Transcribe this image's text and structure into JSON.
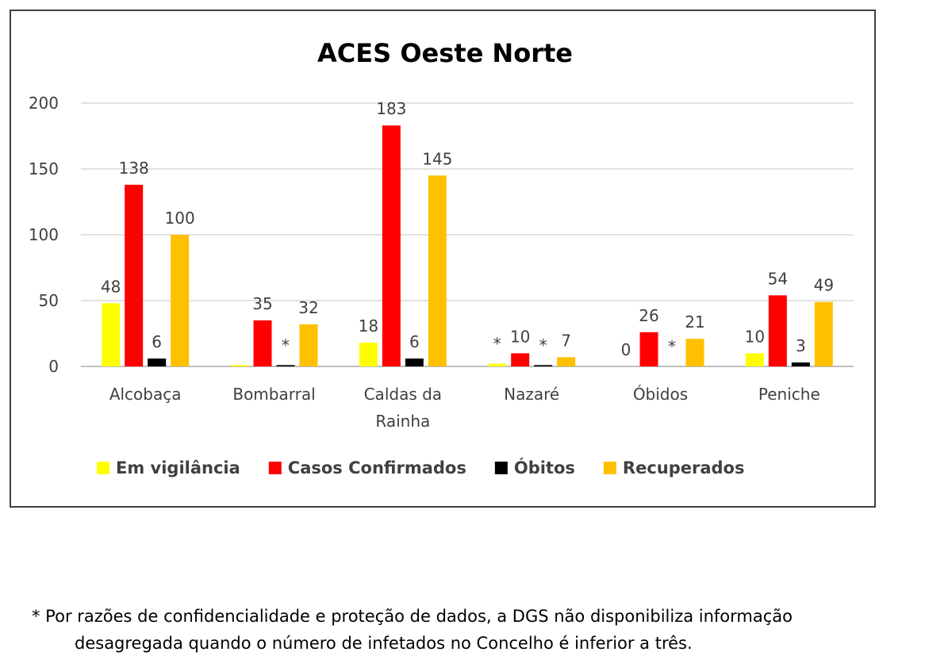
{
  "chart_data": {
    "type": "bar",
    "title": "ACES Oeste Norte",
    "xlabel": "",
    "ylabel": "",
    "ylim": [
      0,
      200
    ],
    "yticks": [
      0,
      50,
      100,
      150,
      200
    ],
    "grid": true,
    "legend_position": "bottom",
    "categories": [
      [
        "Alcobaça"
      ],
      [
        "Bombarral"
      ],
      [
        "Caldas da",
        "Rainha"
      ],
      [
        "Nazaré"
      ],
      [
        "Óbidos"
      ],
      [
        "Peniche"
      ]
    ],
    "series": [
      {
        "name": "Em vigilância",
        "color": "#FFFF00",
        "values": [
          48,
          1,
          18,
          2,
          0,
          10
        ],
        "labels": [
          "48",
          "",
          "18",
          "*",
          "0",
          "10"
        ]
      },
      {
        "name": "Casos Confirmados",
        "color": "#FF0000",
        "values": [
          138,
          35,
          183,
          10,
          26,
          54
        ],
        "labels": [
          "138",
          "35",
          "183",
          "10",
          "26",
          "54"
        ]
      },
      {
        "name": "Óbitos",
        "color": "#000000",
        "values": [
          6,
          1,
          6,
          1,
          0,
          3
        ],
        "labels": [
          "6",
          "*",
          "6",
          "*",
          "*",
          "3"
        ]
      },
      {
        "name": "Recuperados",
        "color": "#FFC000",
        "values": [
          100,
          32,
          145,
          7,
          21,
          49
        ],
        "labels": [
          "100",
          "32",
          "145",
          "7",
          "21",
          "49"
        ]
      }
    ]
  },
  "footnote": {
    "line1": "* Por razões de confidencialidade e proteção de dados, a DGS não disponibiliza informação",
    "line2": "desagregada quando o número de infetados no Concelho é inferior a três."
  }
}
